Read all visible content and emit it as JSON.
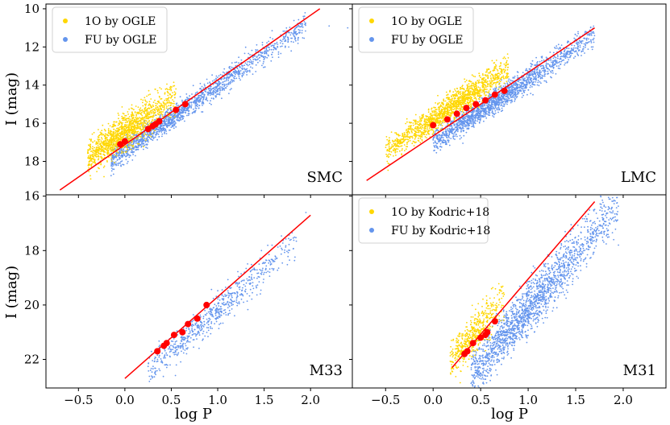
{
  "chart_data": {
    "type": "scatter",
    "layout": "2x2 grid, shared x axis per column, shared y axis per row",
    "xlabel": "log P",
    "ylabel": "I (mag)",
    "x_ticks": [
      "−0.5",
      "0.0",
      "0.5",
      "1.0",
      "1.5",
      "2.0"
    ],
    "x_tick_values": [
      -0.5,
      0.0,
      0.5,
      1.0,
      1.5,
      2.0
    ],
    "xlim": [
      -0.85,
      2.45
    ],
    "colors": {
      "first_overtone": "#FFD700",
      "fundamental": "#6495ED",
      "relation_line": "#FF0000",
      "markers": "#FF0000"
    },
    "rows": [
      {
        "ylim_top": 9.75,
        "ylim_bottom": 19.75,
        "y_tick_values": [
          10,
          12,
          14,
          16,
          18
        ],
        "y_ticks": [
          "10",
          "12",
          "14",
          "16",
          "18"
        ]
      },
      {
        "ylim_top": 15.95,
        "ylim_bottom": 23.05,
        "y_tick_values": [
          16,
          18,
          20,
          22
        ],
        "y_ticks": [
          "16",
          "18",
          "20",
          "22"
        ]
      }
    ],
    "panels": [
      {
        "label": "SMC",
        "legend": [
          "1O by OGLE",
          "FU by OGLE"
        ],
        "line": {
          "x": [
            -0.7,
            2.1
          ],
          "y": [
            19.5,
            10.0
          ]
        },
        "markers": {
          "x": [
            -0.05,
            0.0,
            0.25,
            0.3,
            0.33,
            0.37,
            0.55,
            0.65
          ],
          "y": [
            17.1,
            16.95,
            16.3,
            16.15,
            16.05,
            15.9,
            15.3,
            15.0
          ]
        },
        "clouds": [
          {
            "series": "1O",
            "n": 1300,
            "x": [
              -0.4,
              0.55
            ],
            "y_offset": -0.7,
            "y_sd": 0.45,
            "focus": -0.05
          },
          {
            "series": "FU",
            "n": 1600,
            "x": [
              -0.15,
              1.95
            ],
            "y_offset": 0.3,
            "y_sd": 0.3,
            "focus": 0.3
          }
        ],
        "outliers": {
          "x": [
            2.2,
            2.4
          ],
          "y": [
            10.9,
            11.0
          ]
        }
      },
      {
        "label": "LMC",
        "legend": [
          "1O by OGLE",
          "FU by OGLE"
        ],
        "line": {
          "x": [
            -0.7,
            1.7
          ],
          "y": [
            19.0,
            11.0
          ]
        },
        "markers": {
          "x": [
            0.0,
            0.15,
            0.25,
            0.35,
            0.45,
            0.55,
            0.65,
            0.75
          ],
          "y": [
            16.1,
            15.8,
            15.5,
            15.2,
            15.0,
            14.8,
            14.5,
            14.3
          ]
        },
        "clouds": [
          {
            "series": "1O",
            "n": 1500,
            "x": [
              -0.5,
              0.8
            ],
            "y_offset": -0.9,
            "y_sd": 0.35,
            "focus": 0.2
          },
          {
            "series": "FU",
            "n": 1700,
            "x": [
              0.0,
              1.7
            ],
            "y_offset": 0.35,
            "y_sd": 0.3,
            "focus": 0.6
          }
        ],
        "outliers": {
          "x": [],
          "y": []
        }
      },
      {
        "label": "M33",
        "legend": [],
        "line": {
          "x": [
            0.0,
            2.0
          ],
          "y": [
            22.7,
            16.7
          ]
        },
        "markers": {
          "x": [
            0.35,
            0.42,
            0.45,
            0.53,
            0.62,
            0.68,
            0.78,
            0.88
          ],
          "y": [
            21.7,
            21.5,
            21.4,
            21.1,
            21.0,
            20.7,
            20.5,
            20.0
          ]
        },
        "clouds": [
          {
            "series": "FU",
            "n": 650,
            "x": [
              0.25,
              1.85
            ],
            "y_offset": 0.45,
            "y_sd": 0.3,
            "focus": 0.9
          }
        ],
        "outliers": {
          "x": [
            1.95
          ],
          "y": [
            16.6
          ]
        }
      },
      {
        "label": "M31",
        "legend": [
          "1O by Kodric+18",
          "FU by Kodric+18"
        ],
        "line": {
          "x": [
            0.2,
            1.7
          ],
          "y": [
            22.3,
            16.2
          ]
        },
        "markers": {
          "x": [
            0.33,
            0.36,
            0.42,
            0.5,
            0.55,
            0.57,
            0.65
          ],
          "y": [
            21.8,
            21.7,
            21.4,
            21.2,
            21.1,
            21.0,
            20.6
          ]
        },
        "clouds": [
          {
            "series": "1O",
            "n": 500,
            "x": [
              0.18,
              0.75
            ],
            "y_offset": -0.35,
            "y_sd": 0.35,
            "focus": 0.4
          },
          {
            "series": "FU",
            "n": 1800,
            "x": [
              0.4,
              1.95
            ],
            "y_offset": 1.1,
            "y_sd": 0.45,
            "focus": 0.95
          }
        ],
        "outliers": {
          "x": [
            1.8,
            1.85,
            1.9,
            1.95
          ],
          "y": [
            17.4,
            17.5,
            17.6,
            17.8
          ]
        }
      }
    ]
  }
}
